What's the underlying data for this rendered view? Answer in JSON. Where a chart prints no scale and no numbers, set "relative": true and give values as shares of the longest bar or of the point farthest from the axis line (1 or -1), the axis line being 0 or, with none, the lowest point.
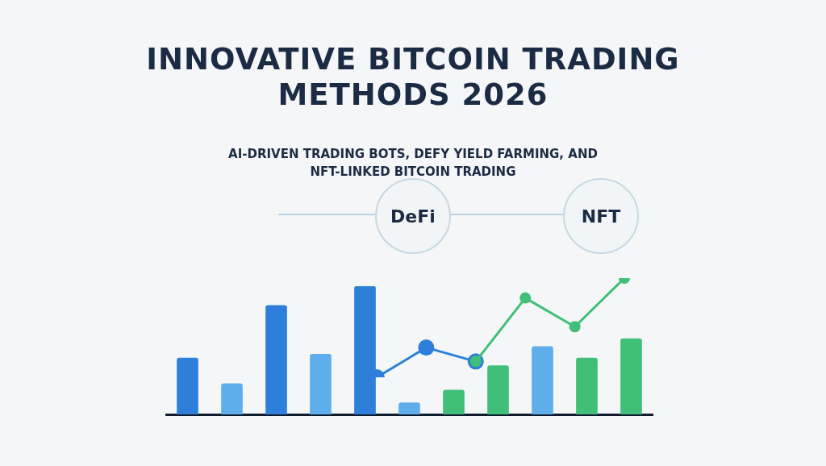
{
  "chart_data": [
    {
      "type": "bar",
      "title": "INNOVATIVE BITCOIN TRADING METHODS 2026",
      "subtitle": "AI-DRIVEN TRADING BOTS, DEFY YIELD FARMING, AND NFT-LINKED BITCOIN TRADING",
      "relative": true,
      "categories": [
        null,
        null,
        null,
        null,
        null,
        null,
        null,
        null,
        null,
        null,
        null
      ],
      "colors": [
        "#2e7fd9",
        "#5eaeec",
        "#2e7fd9",
        "#5eaeec",
        "#2e7fd9",
        "#5eaeec",
        "#3fbf77",
        "#3fbf77",
        "#5eaeec",
        "#3fbf77",
        "#3fbf77"
      ],
      "values": [
        0.44,
        0.24,
        0.85,
        0.47,
        1.0,
        0.09,
        0.19,
        0.38,
        0.53,
        0.44,
        0.59
      ],
      "annotations": [
        "DeFi",
        "NFT"
      ]
    },
    {
      "type": "line",
      "relative": true,
      "marker": "circle",
      "categories": [
        null,
        null,
        null,
        null,
        null,
        null
      ],
      "series": [
        {
          "color": "#2e7fd9",
          "values": [
            0,
            0.3,
            0.16,
            null,
            null,
            null
          ]
        },
        {
          "color": "#3fbf77",
          "values": [
            null,
            null,
            0.16,
            0.8,
            0.51,
            1.0
          ]
        }
      ]
    }
  ]
}
